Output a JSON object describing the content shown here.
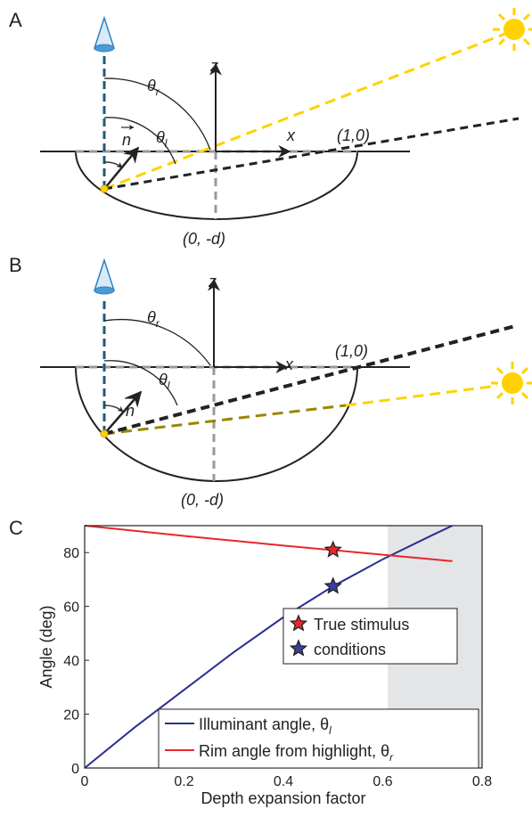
{
  "panels": [
    {
      "label": "A",
      "axis_z": "z",
      "axis_x": "x",
      "theta": "θ",
      "theta_r": "r",
      "theta_l": "l",
      "normal": "n",
      "point_a": "(1,0)",
      "point_b": "(0, -d)"
    },
    {
      "label": "B",
      "axis_z": "z",
      "axis_x": "x",
      "theta": "θ",
      "theta_r": "r",
      "theta_l": "l",
      "normal": "n",
      "point_a": "(1,0)",
      "point_b": "(0, -d)"
    }
  ],
  "chart_data": {
    "type": "line",
    "panel_label": "C",
    "x_label": "Depth expansion factor",
    "y_label": "Angle (deg)",
    "xlim": [
      0,
      0.8
    ],
    "xticks": [
      0,
      0.2,
      0.4,
      0.6,
      0.8
    ],
    "ylim": [
      0,
      90
    ],
    "yticks": [
      0,
      20,
      40,
      60,
      80
    ],
    "shaded_region": [
      0.61,
      0.8
    ],
    "shade_color": "#e4e5e7",
    "x": [
      0,
      0.1,
      0.2,
      0.3,
      0.4,
      0.5,
      0.6,
      0.7,
      0.74
    ],
    "series": [
      {
        "name": "Illuminant angle, θ",
        "name_sub": "l",
        "color": "#2a2f8f",
        "values": [
          0,
          15,
          29,
          43,
          56,
          67.5,
          77.5,
          86.5,
          90
        ]
      },
      {
        "name": "Rim angle from highlight, θ",
        "name_sub": "r",
        "color": "#e8262b",
        "values": [
          90,
          88.1,
          86.2,
          84.4,
          82.6,
          80.9,
          79.2,
          77.5,
          76.8
        ]
      }
    ],
    "markers": [
      {
        "name": "True stimulus",
        "color": "#e8262b",
        "x": [
          0.5
        ],
        "values": [
          81
        ]
      },
      {
        "name": "conditions",
        "color": "#3b3f9e",
        "x": [
          0.5
        ],
        "values": [
          67.5
        ]
      }
    ]
  }
}
